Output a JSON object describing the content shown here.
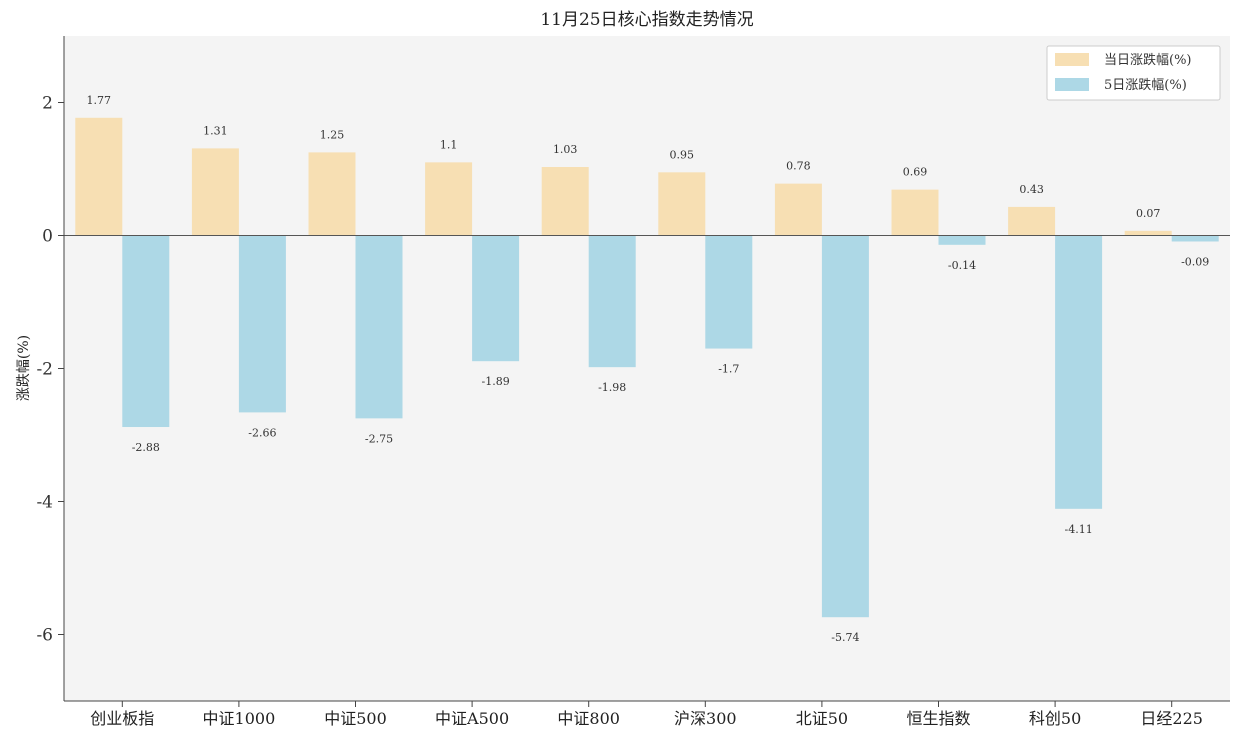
{
  "chart_data": {
    "type": "bar",
    "title": "11月25日核心指数走势情况",
    "xlabel": "",
    "ylabel": "涨跌幅(%)",
    "ylim": [
      -7,
      3
    ],
    "yticks": [
      2,
      0,
      -2,
      -4,
      -6
    ],
    "categories": [
      "创业板指",
      "中证1000",
      "中证500",
      "中证A500",
      "中证800",
      "沪深300",
      "北证50",
      "恒生指数",
      "科创50",
      "日经225"
    ],
    "series": [
      {
        "name": "当日涨跌幅(%)",
        "color": "#F7DFB3",
        "values": [
          1.77,
          1.31,
          1.25,
          1.1,
          1.03,
          0.95,
          0.78,
          0.69,
          0.43,
          0.07
        ],
        "labels": [
          "1.77",
          "1.31",
          "1.25",
          "1.1",
          "1.03",
          "0.95",
          "0.78",
          "0.69",
          "0.43",
          "0.07"
        ]
      },
      {
        "name": "5日涨跌幅(%)",
        "color": "#ADD8E6",
        "values": [
          -2.88,
          -2.66,
          -2.75,
          -1.89,
          -1.98,
          -1.7,
          -5.74,
          -0.14,
          -4.11,
          -0.09
        ],
        "labels": [
          "-2.88",
          "-2.66",
          "-2.75",
          "-1.89",
          "-1.98",
          "-1.7",
          "-5.74",
          "-0.14",
          "-4.11",
          "-0.09"
        ]
      }
    ],
    "legend": "top-right",
    "grid": false
  }
}
